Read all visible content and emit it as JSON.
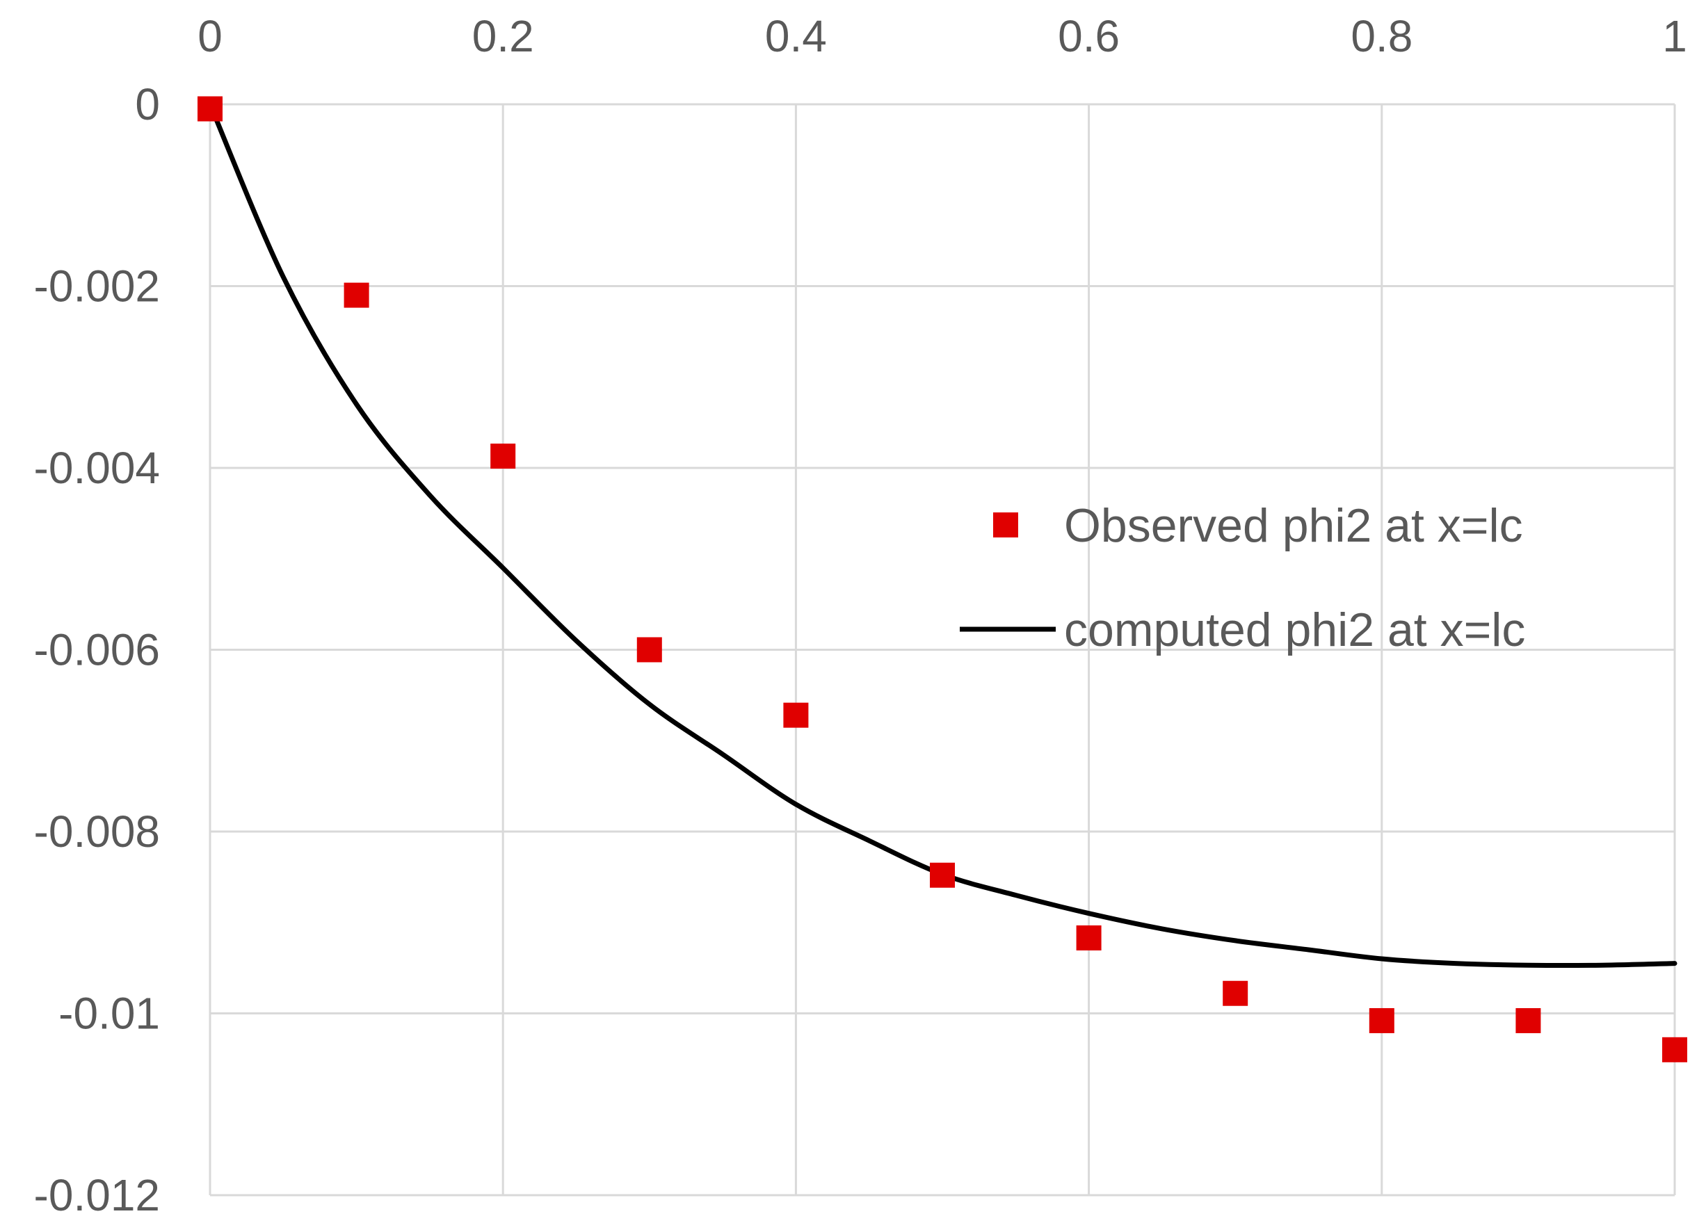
{
  "chart_data": {
    "type": "scatter",
    "title": "",
    "xlabel": "",
    "ylabel": "",
    "xlim": [
      0,
      1
    ],
    "ylim": [
      -0.012,
      0
    ],
    "x_ticks": [
      0,
      0.2,
      0.4,
      0.6,
      0.8,
      1
    ],
    "x_tick_labels": [
      "0",
      "0.2",
      "0.4",
      "0.6",
      "0.8",
      "1"
    ],
    "y_ticks": [
      0,
      -0.002,
      -0.004,
      -0.006,
      -0.008,
      -0.01,
      -0.012
    ],
    "y_tick_labels": [
      "0",
      "-0.002",
      "-0.004",
      "-0.006",
      "-0.008",
      "-0.01",
      "-0.012"
    ],
    "x_axis_position": "top",
    "grid": true,
    "legend_position": "center-right",
    "series": [
      {
        "name": "Observed phi2 at x=lc",
        "kind": "markers",
        "marker": "square",
        "color": "#e00000",
        "points": [
          {
            "x": 0.0,
            "y": -5e-05
          },
          {
            "x": 0.1,
            "y": -0.0021
          },
          {
            "x": 0.2,
            "y": -0.00387
          },
          {
            "x": 0.3,
            "y": -0.006
          },
          {
            "x": 0.4,
            "y": -0.00672
          },
          {
            "x": 0.5,
            "y": -0.00848
          },
          {
            "x": 0.6,
            "y": -0.00917
          },
          {
            "x": 0.7,
            "y": -0.00978
          },
          {
            "x": 0.8,
            "y": -0.01008
          },
          {
            "x": 0.9,
            "y": -0.01008
          },
          {
            "x": 1.0,
            "y": -0.0104
          }
        ]
      },
      {
        "name": "computed phi2 at x=lc",
        "kind": "line",
        "color": "#000000",
        "points": [
          {
            "x": 0.0,
            "y": 0.0
          },
          {
            "x": 0.05,
            "y": -0.0019
          },
          {
            "x": 0.1,
            "y": -0.0033
          },
          {
            "x": 0.15,
            "y": -0.0043
          },
          {
            "x": 0.2,
            "y": -0.0051
          },
          {
            "x": 0.25,
            "y": -0.0059
          },
          {
            "x": 0.3,
            "y": -0.0066
          },
          {
            "x": 0.35,
            "y": -0.00715
          },
          {
            "x": 0.4,
            "y": -0.0077
          },
          {
            "x": 0.45,
            "y": -0.0081
          },
          {
            "x": 0.5,
            "y": -0.00847
          },
          {
            "x": 0.55,
            "y": -0.0087
          },
          {
            "x": 0.6,
            "y": -0.0089
          },
          {
            "x": 0.65,
            "y": -0.00907
          },
          {
            "x": 0.7,
            "y": -0.0092
          },
          {
            "x": 0.75,
            "y": -0.0093
          },
          {
            "x": 0.8,
            "y": -0.0094
          },
          {
            "x": 0.85,
            "y": -0.00945
          },
          {
            "x": 0.9,
            "y": -0.00947
          },
          {
            "x": 0.95,
            "y": -0.00947
          },
          {
            "x": 1.0,
            "y": -0.00945
          }
        ]
      }
    ]
  }
}
